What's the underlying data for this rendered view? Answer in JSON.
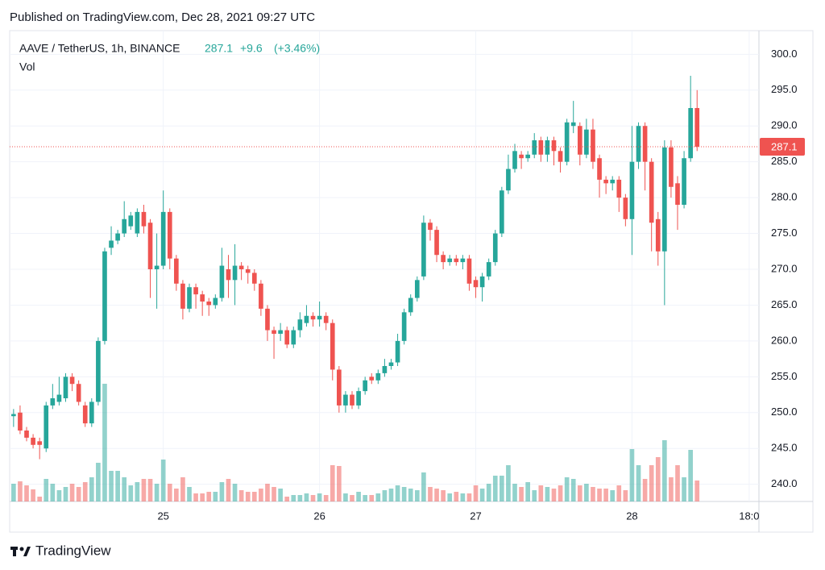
{
  "published": "Published on TradingView.com, Dec 28, 2021 09:27 UTC",
  "brand": "TradingView",
  "chart_data": {
    "type": "candlestick",
    "symbol": "AAVE / TetherUS, 1h, BINANCE",
    "last_price": 287.1,
    "change": 9.6,
    "change_label": "+9.6",
    "change_pct": 3.46,
    "change_pct_label": "(+3.46%)",
    "volume_label": "Vol",
    "up_color": "#26a69a",
    "down_color": "#ef5350",
    "grid": true,
    "x": [
      1,
      2,
      3,
      4,
      5,
      6,
      7,
      8,
      9,
      10,
      11,
      12,
      13,
      14,
      15,
      16,
      17,
      18,
      19,
      20,
      21,
      22,
      23,
      24,
      25,
      26,
      27,
      28,
      29,
      30,
      31,
      32,
      33,
      34,
      35,
      36,
      37,
      38,
      39,
      40,
      41,
      42,
      43,
      44,
      45,
      46,
      47,
      48,
      49,
      50,
      51,
      52,
      53,
      54,
      55,
      56,
      57,
      58,
      59,
      60,
      61,
      62,
      63,
      64,
      65,
      66,
      67,
      68,
      69,
      70,
      71,
      72,
      73,
      74,
      75,
      76,
      77,
      78,
      79,
      80,
      81,
      82,
      83,
      84,
      85,
      86,
      87,
      88,
      89,
      90,
      91,
      92,
      93,
      94,
      95,
      96,
      97,
      98,
      99,
      100,
      101,
      102,
      103,
      104,
      105,
      106
    ],
    "open": [
      249.5,
      250,
      247.5,
      246.5,
      246,
      245,
      251,
      251.5,
      252,
      255,
      254,
      251,
      248.5,
      251.5,
      260,
      273,
      274,
      275,
      276,
      275,
      278,
      276.5,
      270,
      270.5,
      278,
      271.5,
      268,
      264.5,
      267.5,
      266.5,
      265.5,
      265,
      266,
      270,
      268.5,
      270.5,
      270,
      269.5,
      268,
      264.5,
      261.5,
      261,
      261.5,
      259.5,
      261.5,
      262.5,
      263.5,
      263,
      263.5,
      262.5,
      256,
      251,
      252.5,
      251,
      253,
      255,
      254.5,
      255.5,
      256.5,
      257,
      260,
      264,
      266,
      269,
      276.5,
      275.5,
      272,
      271,
      271.5,
      271,
      271.5,
      268.5,
      267.5,
      269,
      271,
      275,
      281,
      284,
      286,
      285.5,
      286,
      288,
      286,
      288,
      286.5,
      285,
      290,
      290,
      286,
      289.5,
      285.5,
      282.5,
      282,
      282.5,
      280,
      277,
      285,
      290,
      285,
      277,
      272.5,
      287,
      282,
      279,
      285.5,
      292.5
    ],
    "high": [
      250.5,
      251,
      248,
      247,
      246.5,
      251.5,
      254,
      255,
      255.5,
      255.5,
      254.5,
      251.5,
      252,
      260.5,
      273,
      276,
      275.5,
      279.5,
      278,
      278.5,
      279,
      277,
      275,
      281,
      278.5,
      272,
      268.5,
      268,
      268,
      267,
      266,
      266.5,
      273,
      272,
      273.5,
      271,
      270.5,
      270,
      268.5,
      265,
      262,
      262.5,
      262,
      262,
      264,
      265,
      264,
      265.5,
      264,
      263,
      256.5,
      253,
      253,
      253.5,
      255,
      255.5,
      256,
      257.5,
      257.5,
      261,
      264.5,
      266.5,
      269,
      277.5,
      277,
      276,
      272.5,
      272,
      272,
      272,
      272,
      269,
      269.5,
      271.5,
      275.5,
      281.5,
      286,
      287.5,
      286.5,
      286.5,
      289,
      288.5,
      288.5,
      288.5,
      287,
      291,
      293.5,
      290.5,
      291,
      291,
      286,
      283,
      283,
      283,
      280.5,
      290,
      290.5,
      290.5,
      285.5,
      278,
      288,
      288,
      283,
      286.5,
      297,
      295
    ],
    "low": [
      248,
      247,
      246,
      245,
      243.5,
      244.5,
      250.5,
      251,
      251.5,
      253,
      251,
      248,
      248,
      251,
      259.5,
      272,
      273.5,
      274.5,
      275.5,
      274.5,
      275,
      266,
      264.5,
      270,
      270,
      267,
      263,
      264,
      264.5,
      263.5,
      263.5,
      264.5,
      265.5,
      266,
      265,
      268.5,
      268,
      267,
      263.5,
      260,
      257.5,
      260,
      259,
      259,
      260.5,
      262,
      262,
      262,
      261.5,
      254.5,
      250,
      250,
      250.5,
      250.5,
      252.5,
      254,
      254,
      255,
      256,
      256.5,
      259.5,
      263.5,
      265.5,
      268.5,
      274,
      271,
      270,
      270.5,
      270.5,
      270,
      267,
      266,
      265.5,
      268.5,
      270.5,
      274.5,
      280.5,
      283.5,
      284,
      285,
      285.5,
      285,
      285,
      284.5,
      283.5,
      284.5,
      289,
      284.5,
      285.5,
      284,
      280,
      280.5,
      281,
      278,
      276,
      272,
      284,
      281,
      272.5,
      270.5,
      265,
      280,
      275.5,
      278.5,
      285,
      286.5
    ],
    "close": [
      249.8,
      247.5,
      246.5,
      245.5,
      245.5,
      251,
      252,
      252.5,
      255,
      254,
      251.5,
      248.5,
      251.5,
      260,
      272.5,
      274,
      275,
      277,
      277.5,
      278,
      276,
      270,
      270.5,
      278,
      271.5,
      268,
      264.5,
      267.5,
      266.5,
      265.5,
      265,
      266,
      270.5,
      268.5,
      270.5,
      270,
      269.5,
      268,
      264.5,
      261.5,
      261,
      261.5,
      259.5,
      261.5,
      263,
      263.5,
      263,
      263.5,
      262.5,
      256,
      251,
      252.5,
      251,
      253,
      254.5,
      254.5,
      255.5,
      256.5,
      257,
      260,
      264,
      266,
      268.5,
      276.5,
      275.5,
      272,
      271,
      271.5,
      271,
      271.5,
      268,
      267.5,
      269,
      271,
      275,
      281,
      284,
      286.5,
      285.5,
      286,
      288,
      286,
      288,
      286.5,
      285,
      290.5,
      290.5,
      286,
      289.5,
      285,
      282.5,
      282,
      282.5,
      280,
      277,
      285,
      290,
      285,
      276.5,
      272.5,
      287,
      281.5,
      279,
      285.5,
      292.5,
      287.1
    ],
    "volume": [
      22,
      25,
      20,
      15,
      6,
      28,
      22,
      14,
      18,
      22,
      18,
      24,
      30,
      48,
      146,
      38,
      38,
      30,
      20,
      24,
      28,
      28,
      22,
      52,
      22,
      16,
      30,
      18,
      10,
      10,
      12,
      12,
      24,
      28,
      22,
      14,
      12,
      12,
      16,
      22,
      18,
      16,
      6,
      8,
      8,
      10,
      8,
      10,
      8,
      45,
      44,
      10,
      8,
      12,
      8,
      8,
      10,
      14,
      16,
      20,
      18,
      16,
      14,
      36,
      18,
      16,
      14,
      10,
      12,
      10,
      10,
      20,
      16,
      22,
      32,
      32,
      45,
      22,
      18,
      24,
      14,
      20,
      18,
      16,
      20,
      30,
      28,
      20,
      22,
      18,
      16,
      16,
      14,
      20,
      14,
      65,
      45,
      28,
      45,
      55,
      76,
      30,
      45,
      30,
      64,
      26
    ],
    "xlim": [
      0.4,
      115.5
    ],
    "xticks": [
      {
        "value": 24,
        "label": "25"
      },
      {
        "value": 48,
        "label": "26"
      },
      {
        "value": 72,
        "label": "27"
      },
      {
        "value": 96,
        "label": "28"
      },
      {
        "value": 114,
        "label": "18:0"
      }
    ],
    "ylim": [
      237.6,
      303.3
    ],
    "yticks": [
      {
        "value": 240,
        "label": "240.0"
      },
      {
        "value": 245,
        "label": "245.0"
      },
      {
        "value": 250,
        "label": "250.0"
      },
      {
        "value": 255,
        "label": "255.0"
      },
      {
        "value": 260,
        "label": "260.0"
      },
      {
        "value": 265,
        "label": "265.0"
      },
      {
        "value": 270,
        "label": "270.0"
      },
      {
        "value": 275,
        "label": "275.0"
      },
      {
        "value": 280,
        "label": "280.0"
      },
      {
        "value": 285,
        "label": "285.0"
      },
      {
        "value": 290,
        "label": "290.0"
      },
      {
        "value": 295,
        "label": "295.0"
      },
      {
        "value": 300,
        "label": "300.0"
      }
    ]
  }
}
